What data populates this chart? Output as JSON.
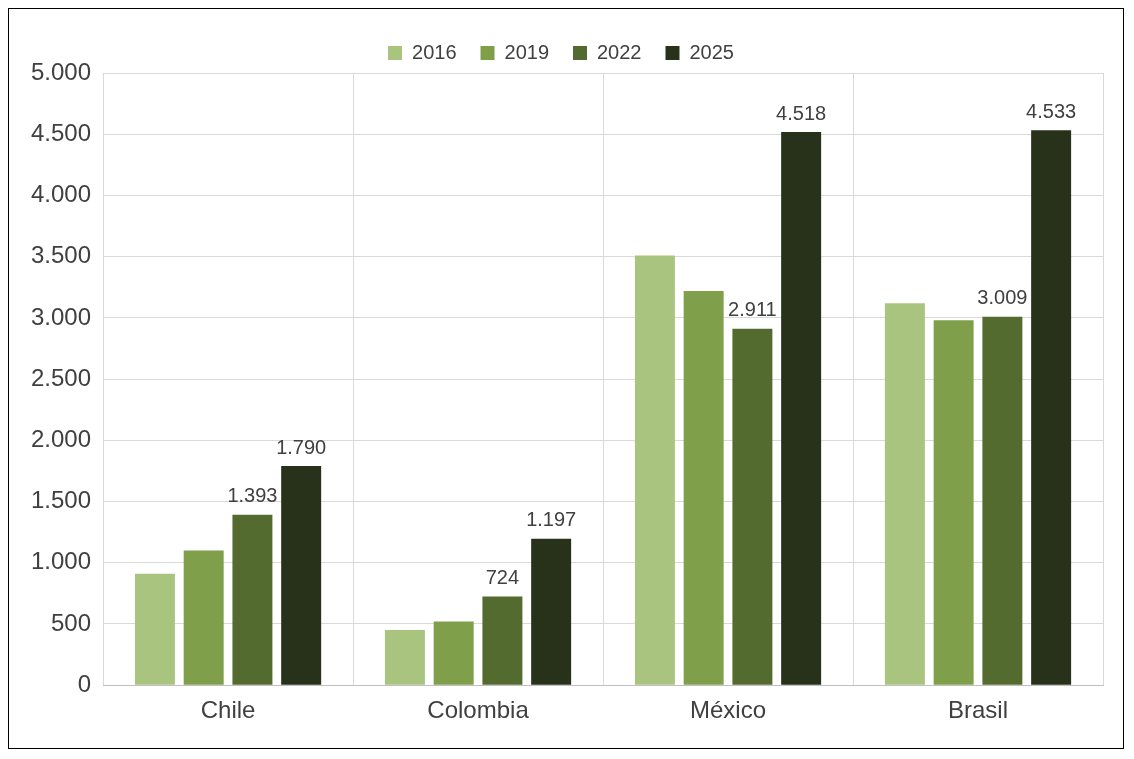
{
  "chart_data": {
    "type": "bar",
    "categories": [
      "Chile",
      "Colombia",
      "México",
      "Brasil"
    ],
    "series": [
      {
        "name": "2016",
        "color": "#a9c47f",
        "values": [
          910,
          450,
          3510,
          3120
        ],
        "value_labels": [
          null,
          null,
          null,
          null
        ]
      },
      {
        "name": "2019",
        "color": "#7f9f4a",
        "values": [
          1100,
          520,
          3220,
          2980
        ],
        "value_labels": [
          null,
          null,
          null,
          null
        ]
      },
      {
        "name": "2022",
        "color": "#546b30",
        "values": [
          1393,
          724,
          2911,
          3009
        ],
        "value_labels": [
          "1.393",
          "724",
          "2.911",
          "3.009"
        ]
      },
      {
        "name": "2025",
        "color": "#28311a",
        "values": [
          1790,
          1197,
          4518,
          4533
        ],
        "value_labels": [
          "1.790",
          "1.197",
          "4.518",
          "4.533"
        ]
      }
    ],
    "ylim": [
      0,
      5000
    ],
    "yticks": [
      {
        "value": 0,
        "label": "0"
      },
      {
        "value": 500,
        "label": "500"
      },
      {
        "value": 1000,
        "label": "1.000"
      },
      {
        "value": 1500,
        "label": "1.500"
      },
      {
        "value": 2000,
        "label": "2.000"
      },
      {
        "value": 2500,
        "label": "2.500"
      },
      {
        "value": 3000,
        "label": "3.000"
      },
      {
        "value": 3500,
        "label": "3.500"
      },
      {
        "value": 4000,
        "label": "4.000"
      },
      {
        "value": 4500,
        "label": "4.500"
      },
      {
        "value": 5000,
        "label": "5.000"
      }
    ],
    "grid": true,
    "legend": "top"
  }
}
